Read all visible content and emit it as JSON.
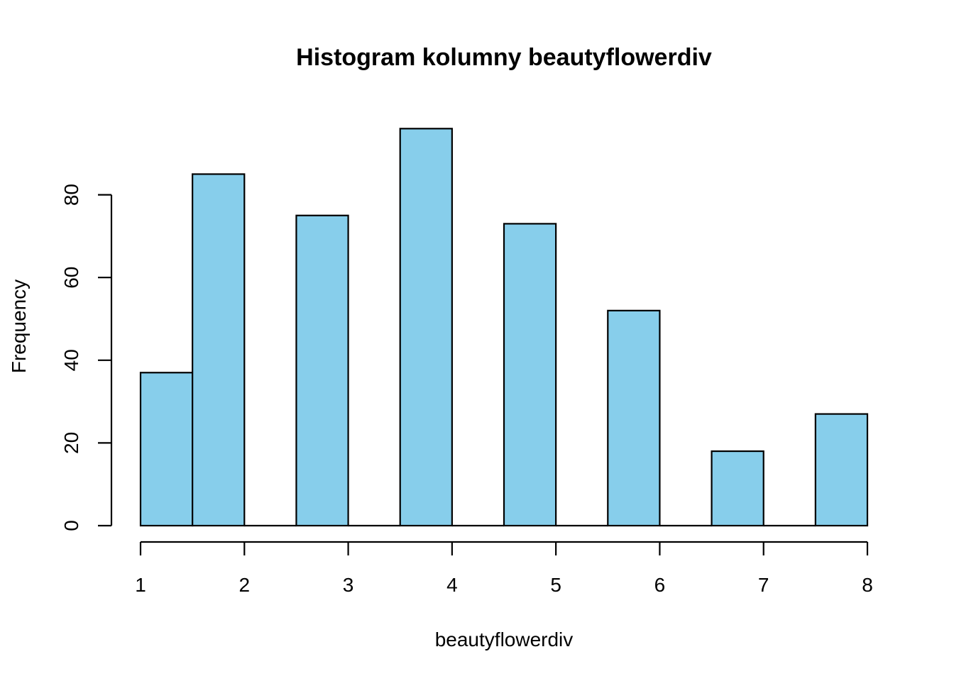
{
  "chart_data": {
    "type": "bar",
    "title": "Histogram kolumny beautyflowerdiv",
    "xlabel": "beautyflowerdiv",
    "ylabel": "Frequency",
    "bins": [
      {
        "start": 1.0,
        "end": 1.5,
        "count": 37
      },
      {
        "start": 1.5,
        "end": 2.0,
        "count": 85
      },
      {
        "start": 2.0,
        "end": 2.5,
        "count": 0
      },
      {
        "start": 2.5,
        "end": 3.0,
        "count": 75
      },
      {
        "start": 3.0,
        "end": 3.5,
        "count": 0
      },
      {
        "start": 3.5,
        "end": 4.0,
        "count": 96
      },
      {
        "start": 4.0,
        "end": 4.5,
        "count": 0
      },
      {
        "start": 4.5,
        "end": 5.0,
        "count": 73
      },
      {
        "start": 5.0,
        "end": 5.5,
        "count": 0
      },
      {
        "start": 5.5,
        "end": 6.0,
        "count": 52
      },
      {
        "start": 6.0,
        "end": 6.5,
        "count": 0
      },
      {
        "start": 6.5,
        "end": 7.0,
        "count": 18
      },
      {
        "start": 7.0,
        "end": 7.5,
        "count": 0
      },
      {
        "start": 7.5,
        "end": 8.0,
        "count": 27
      }
    ],
    "xlim": [
      1,
      8
    ],
    "ylim": [
      0,
      96
    ],
    "x_ticks": [
      1,
      2,
      3,
      4,
      5,
      6,
      7,
      8
    ],
    "y_ticks": [
      0,
      20,
      40,
      60,
      80
    ],
    "bar_color": "#87CEEB",
    "grid": false,
    "legend": "none"
  }
}
